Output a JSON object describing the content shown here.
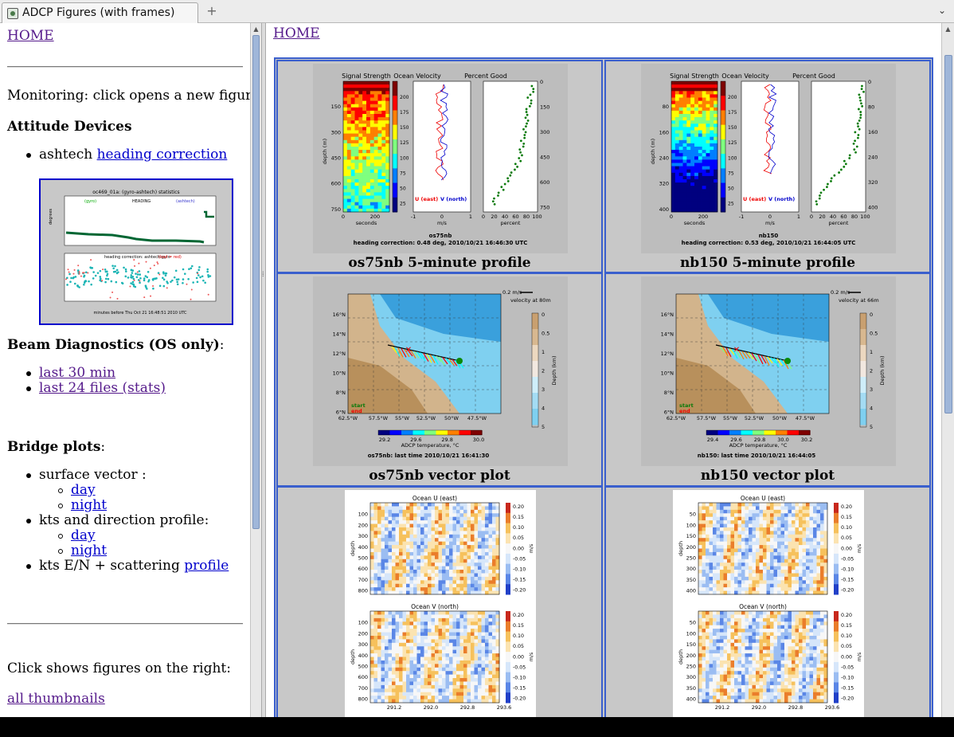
{
  "tab": {
    "title": "ADCP Figures (with frames)",
    "new_tab": "+",
    "menu": "⌄"
  },
  "left": {
    "home": "HOME",
    "monitoring": "Monitoring: click opens a new figure",
    "attitude_title": "Attitude Devices",
    "ashtech_prefix": "ashtech",
    "heading_correction": "heading correction",
    "thumb": {
      "title": "oc469_01a: (gyro-ashtech) statistics",
      "heading": "HEADING",
      "gyro": "(gyro)",
      "ashtech": "(ashtech)",
      "ylabel": "degrees",
      "sub_title": "heading correction: ashtech-gyro",
      "bad": "(bad = red)",
      "xlabel": "minutes before Thu Oct 21 16:48:51 2010 UTC"
    },
    "beam_title": "Beam Diagnostics (OS only)",
    "beam_colon": ":",
    "beam_links": [
      "last 30 min",
      "last 24 files (stats)"
    ],
    "bridge_title": "Bridge plots",
    "bridge_colon": ":",
    "surface_vector": "surface vector :",
    "kts_profile": "kts and direction profile:",
    "day": "day",
    "night": "night",
    "kts_en_prefix": "kts E/N + scattering",
    "profile": "profile",
    "click_shows": "Click shows figures on the right:",
    "all_thumbnails": "all thumbnails"
  },
  "right": {
    "home": "HOME",
    "captions": {
      "os_profile": "os75nb 5-minute profile",
      "nb_profile": "nb150 5-minute profile",
      "os_vector": "os75nb vector plot",
      "nb_vector": "nb150 vector plot"
    },
    "profile_os": {
      "panels": [
        "Signal Strength",
        "Ocean Velocity",
        "Percent Good"
      ],
      "depth_ticks": [
        "150",
        "300",
        "450",
        "600",
        "750"
      ],
      "cbar_ticks": [
        "200",
        "175",
        "150",
        "125",
        "100",
        "75",
        "50",
        "25"
      ],
      "pg_ticks": [
        "0",
        "150",
        "300",
        "450",
        "600",
        "750"
      ],
      "ylabel": "depth (m)",
      "x1": [
        "0",
        "200"
      ],
      "x1label": "seconds",
      "x2": [
        "-1",
        "0",
        "1"
      ],
      "x2label": "m/s",
      "x3": [
        "0",
        "20",
        "40",
        "60",
        "80",
        "100"
      ],
      "x3label": "percent",
      "ulabel": "U (east)",
      "vlabel": "V (north)",
      "inst": "os75nb",
      "footer": "heading correction:  0.48 deg, 2010/10/21 16:46:30 UTC"
    },
    "profile_nb": {
      "panels": [
        "Signal Strength",
        "Ocean Velocity",
        "Percent Good"
      ],
      "depth_ticks": [
        "80",
        "160",
        "240",
        "320",
        "400"
      ],
      "cbar_ticks": [
        "200",
        "175",
        "150",
        "125",
        "100",
        "75",
        "50",
        "25"
      ],
      "pg_ticks": [
        "0",
        "80",
        "160",
        "240",
        "320",
        "400"
      ],
      "ylabel": "depth (m)",
      "x1": [
        "0",
        "200"
      ],
      "x1label": "seconds",
      "x2": [
        "-1",
        "0",
        "1"
      ],
      "x2label": "m/s",
      "x3": [
        "0",
        "20",
        "40",
        "60",
        "80",
        "100"
      ],
      "x3label": "percent",
      "ulabel": "U (east)",
      "vlabel": "V (north)",
      "inst": "nb150",
      "footer": "heading correction:  0.53 deg, 2010/10/21 16:44:05 UTC"
    },
    "vector_os": {
      "scale": "0.2 m/s",
      "vel_label": "velocity at 80m",
      "lat_ticks": [
        "16°N",
        "14°N",
        "12°N",
        "10°N",
        "8°N",
        "6°N"
      ],
      "lon_ticks": [
        "62.5°W",
        "57.5°W",
        "55°W",
        "52.5°W",
        "50°W",
        "47.5°W"
      ],
      "depth_ticks": [
        "0",
        "0.5",
        "1",
        "2",
        "3",
        "4",
        "5"
      ],
      "depth_label": "Depth (km)",
      "start": "start",
      "end": "end",
      "temp_ticks": [
        "29.2",
        "29.6",
        "29.8",
        "30.0"
      ],
      "temp_label": "ADCP temperature, °C",
      "footer": "os75nb: last time 2010/10/21 16:41:30"
    },
    "vector_nb": {
      "scale": "0.2 m/s",
      "vel_label": "velocity at 66m",
      "lat_ticks": [
        "16°N",
        "14°N",
        "12°N",
        "10°N",
        "8°N",
        "6°N"
      ],
      "lon_ticks": [
        "62.5°W",
        "57.5°W",
        "55°W",
        "52.5°W",
        "50°W",
        "47.5°W"
      ],
      "depth_ticks": [
        "0",
        "0.5",
        "1",
        "2",
        "3",
        "4",
        "5"
      ],
      "depth_label": "Depth (km)",
      "start": "start",
      "end": "end",
      "temp_ticks": [
        "29.4",
        "29.6",
        "29.8",
        "30.0",
        "30.2"
      ],
      "temp_label": "ADCP temperature, °C",
      "footer": "nb150: last time 2010/10/21 16:44:05"
    },
    "contour_os": {
      "title_u": "Ocean U (east)",
      "title_v": "Ocean V (north)",
      "depth_ticks": [
        "100",
        "200",
        "300",
        "400",
        "500",
        "600",
        "700",
        "800"
      ],
      "ylabel": "depth",
      "cbar": [
        "0.20",
        "0.15",
        "0.10",
        "0.05",
        "0.00",
        "-0.05",
        "-0.10",
        "-0.15",
        "-0.20"
      ],
      "unit": "m/s",
      "x_ticks": [
        "291.2",
        "292.0",
        "292.8",
        "293.6"
      ]
    },
    "contour_nb": {
      "title_u": "Ocean U (east)",
      "title_v": "Ocean V (north)",
      "depth_ticks": [
        "50",
        "100",
        "150",
        "200",
        "250",
        "300",
        "350",
        "400"
      ],
      "ylabel": "depth",
      "cbar": [
        "0.20",
        "0.15",
        "0.10",
        "0.05",
        "0.00",
        "-0.05",
        "-0.10",
        "-0.15",
        "-0.20"
      ],
      "unit": "m/s",
      "x_ticks": [
        "291.2",
        "292.0",
        "292.8",
        "293.6"
      ]
    }
  },
  "colors": {
    "frame_border": "#3a5fcd",
    "link": "#0000cc",
    "visited": "#551a8b",
    "cell_bg": "#c8c8c8"
  }
}
